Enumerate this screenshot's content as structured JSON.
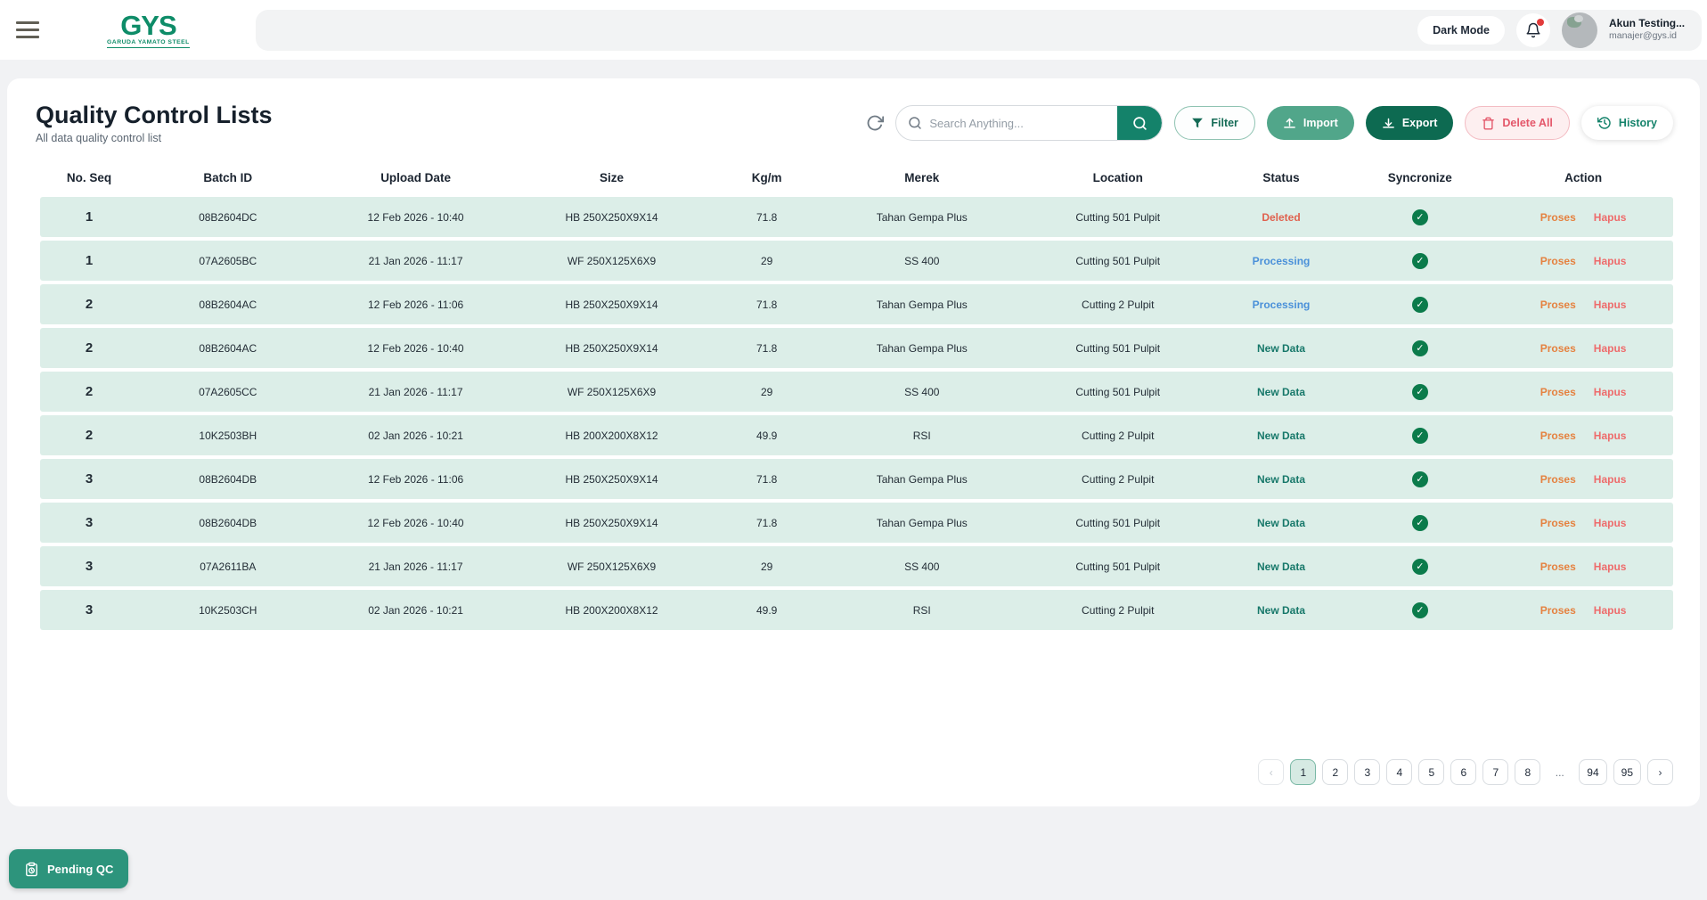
{
  "topbar": {
    "logo": {
      "text": "GYS",
      "subtext": "GARUDA YAMATO STEEL"
    },
    "dark_mode_label": "Dark Mode",
    "user": {
      "name": "Akun Testing...",
      "email": "manajer@gys.id"
    }
  },
  "page": {
    "title": "Quality Control Lists",
    "subtitle": "All data quality control list"
  },
  "toolbar": {
    "search_placeholder": "Search Anything...",
    "filter_label": "Filter",
    "import_label": "Import",
    "export_label": "Export",
    "delete_all_label": "Delete All",
    "history_label": "History"
  },
  "table": {
    "columns": [
      "No. Seq",
      "Batch ID",
      "Upload Date",
      "Size",
      "Kg/m",
      "Merek",
      "Location",
      "Status",
      "Syncronize",
      "Action"
    ],
    "action_labels": {
      "proses": "Proses",
      "hapus": "Hapus"
    },
    "sync_icon": "✓",
    "rows": [
      {
        "no_seq": "1",
        "batch_id": "08B2604DC",
        "upload_date": "12 Feb 2026 - 10:40",
        "size": "HB 250X250X9X14",
        "kgm": "71.8",
        "merek": "Tahan Gempa Plus",
        "location": "Cutting 501 Pulpit",
        "status": "Deleted",
        "status_type": "deleted",
        "synced": true
      },
      {
        "no_seq": "1",
        "batch_id": "07A2605BC",
        "upload_date": "21 Jan 2026 - 11:17",
        "size": "WF 250X125X6X9",
        "kgm": "29",
        "merek": "SS 400",
        "location": "Cutting 501 Pulpit",
        "status": "Processing",
        "status_type": "processing",
        "synced": true
      },
      {
        "no_seq": "2",
        "batch_id": "08B2604AC",
        "upload_date": "12 Feb 2026 - 11:06",
        "size": "HB 250X250X9X14",
        "kgm": "71.8",
        "merek": "Tahan Gempa Plus",
        "location": "Cutting 2 Pulpit",
        "status": "Processing",
        "status_type": "processing",
        "synced": true
      },
      {
        "no_seq": "2",
        "batch_id": "08B2604AC",
        "upload_date": "12 Feb 2026 - 10:40",
        "size": "HB 250X250X9X14",
        "kgm": "71.8",
        "merek": "Tahan Gempa Plus",
        "location": "Cutting 501 Pulpit",
        "status": "New Data",
        "status_type": "new",
        "synced": true
      },
      {
        "no_seq": "2",
        "batch_id": "07A2605CC",
        "upload_date": "21 Jan 2026 - 11:17",
        "size": "WF 250X125X6X9",
        "kgm": "29",
        "merek": "SS 400",
        "location": "Cutting 501 Pulpit",
        "status": "New Data",
        "status_type": "new",
        "synced": true
      },
      {
        "no_seq": "2",
        "batch_id": "10K2503BH",
        "upload_date": "02 Jan 2026 - 10:21",
        "size": "HB 200X200X8X12",
        "kgm": "49.9",
        "merek": "RSI",
        "location": "Cutting 2 Pulpit",
        "status": "New Data",
        "status_type": "new",
        "synced": true
      },
      {
        "no_seq": "3",
        "batch_id": "08B2604DB",
        "upload_date": "12 Feb 2026 - 11:06",
        "size": "HB 250X250X9X14",
        "kgm": "71.8",
        "merek": "Tahan Gempa Plus",
        "location": "Cutting 2 Pulpit",
        "status": "New Data",
        "status_type": "new",
        "synced": true
      },
      {
        "no_seq": "3",
        "batch_id": "08B2604DB",
        "upload_date": "12 Feb 2026 - 10:40",
        "size": "HB 250X250X9X14",
        "kgm": "71.8",
        "merek": "Tahan Gempa Plus",
        "location": "Cutting 501 Pulpit",
        "status": "New Data",
        "status_type": "new",
        "synced": true
      },
      {
        "no_seq": "3",
        "batch_id": "07A2611BA",
        "upload_date": "21 Jan 2026 - 11:17",
        "size": "WF 250X125X6X9",
        "kgm": "29",
        "merek": "SS 400",
        "location": "Cutting 501 Pulpit",
        "status": "New Data",
        "status_type": "new",
        "synced": true
      },
      {
        "no_seq": "3",
        "batch_id": "10K2503CH",
        "upload_date": "02 Jan 2026 - 10:21",
        "size": "HB 200X200X8X12",
        "kgm": "49.9",
        "merek": "RSI",
        "location": "Cutting 2 Pulpit",
        "status": "New Data",
        "status_type": "new",
        "synced": true
      }
    ]
  },
  "pagination": {
    "prev_label": "‹",
    "next_label": "›",
    "pages": [
      "1",
      "2",
      "3",
      "4",
      "5",
      "6",
      "7",
      "8",
      "...",
      "94",
      "95"
    ],
    "active_page": "1",
    "ellipsis": "..."
  },
  "floating_button": {
    "label": "Pending QC"
  },
  "colors": {
    "brand_green": "#0e8c68",
    "accent_teal": "#14826a",
    "import_green": "#51a68a",
    "export_green": "#0d6a51",
    "danger_red": "#e4576a",
    "proses_orange": "#e5813f",
    "hapus_red": "#ee6b6b",
    "row_mint": "#dceee8",
    "status_new": "#17786a",
    "status_processing": "#4a90d9",
    "status_deleted": "#e0614e",
    "check_green": "#0b7b4b",
    "pending_qc_green": "#2d947c"
  }
}
